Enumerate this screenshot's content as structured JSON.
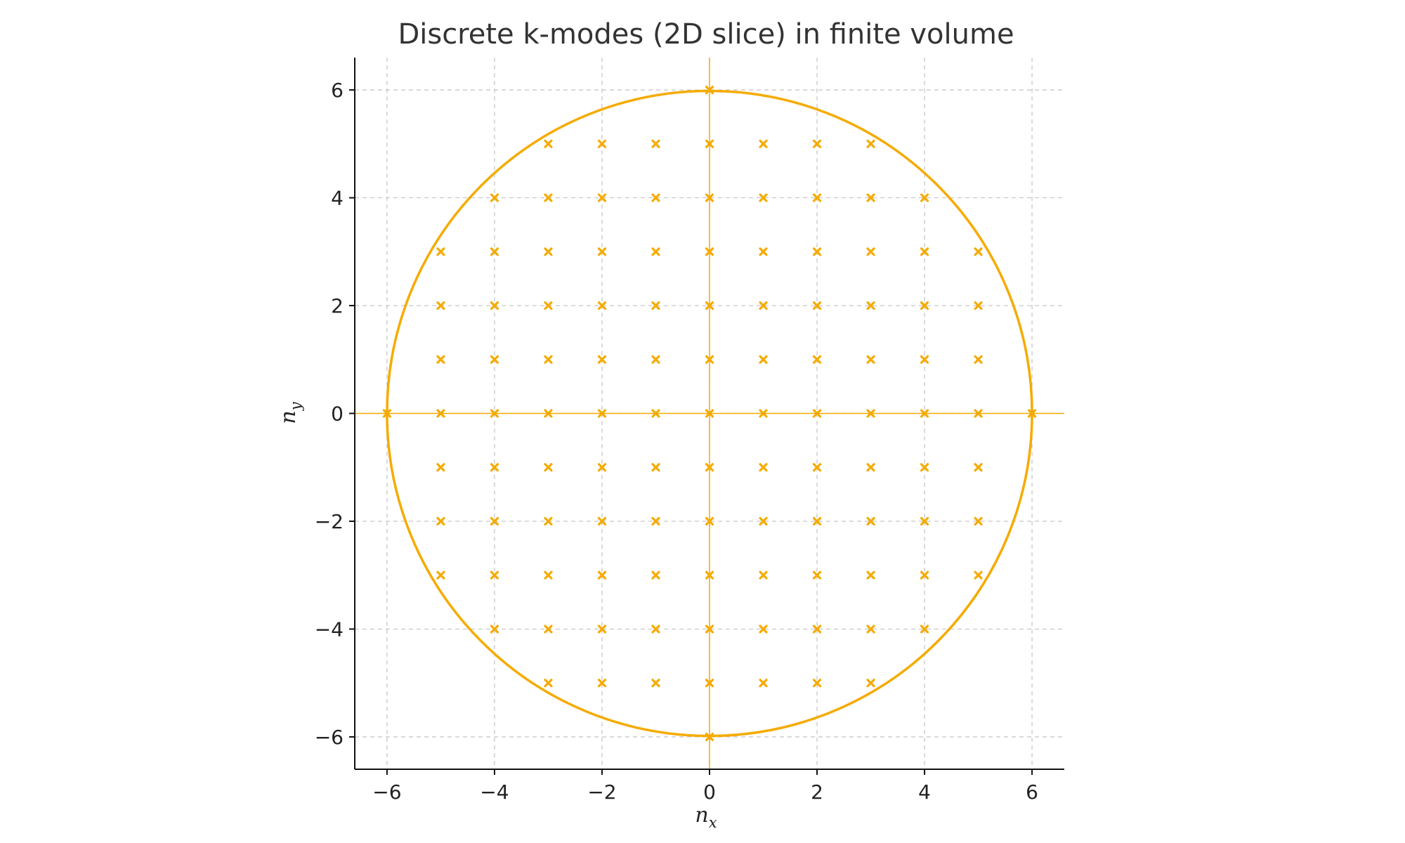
{
  "chart_data": {
    "type": "scatter",
    "title": "Discrete k-modes (2D slice) in finite volume",
    "xlabel": "n",
    "xlabel_sub": "x",
    "ylabel": "n",
    "ylabel_sub": "y",
    "xlim": [
      -6.6,
      6.6
    ],
    "ylim": [
      -6.6,
      6.6
    ],
    "xticks": [
      -6,
      -4,
      -2,
      0,
      2,
      4,
      6
    ],
    "yticks": [
      -6,
      -4,
      -2,
      0,
      2,
      4,
      6
    ],
    "xtick_labels": [
      "−6",
      "−4",
      "−2",
      "0",
      "2",
      "4",
      "6"
    ],
    "ytick_labels": [
      "−6",
      "−4",
      "−2",
      "0",
      "2",
      "4",
      "6"
    ],
    "grid": true,
    "color": "#f5ab00",
    "circle": {
      "center": [
        0,
        0
      ],
      "radius": 6
    },
    "crosshair": {
      "x": 0,
      "y": 0
    },
    "marker": "x",
    "points_rule": "all integer (n_x, n_y) with n_x^2 + n_y^2 <= 36",
    "points": [
      [
        0,
        6
      ],
      [
        -3,
        5
      ],
      [
        -2,
        5
      ],
      [
        -1,
        5
      ],
      [
        0,
        5
      ],
      [
        1,
        5
      ],
      [
        2,
        5
      ],
      [
        3,
        5
      ],
      [
        -4,
        4
      ],
      [
        -3,
        4
      ],
      [
        -2,
        4
      ],
      [
        -1,
        4
      ],
      [
        0,
        4
      ],
      [
        1,
        4
      ],
      [
        2,
        4
      ],
      [
        3,
        4
      ],
      [
        4,
        4
      ],
      [
        -5,
        3
      ],
      [
        -4,
        3
      ],
      [
        -3,
        3
      ],
      [
        -2,
        3
      ],
      [
        -1,
        3
      ],
      [
        0,
        3
      ],
      [
        1,
        3
      ],
      [
        2,
        3
      ],
      [
        3,
        3
      ],
      [
        4,
        3
      ],
      [
        5,
        3
      ],
      [
        -5,
        2
      ],
      [
        -4,
        2
      ],
      [
        -3,
        2
      ],
      [
        -2,
        2
      ],
      [
        -1,
        2
      ],
      [
        0,
        2
      ],
      [
        1,
        2
      ],
      [
        2,
        2
      ],
      [
        3,
        2
      ],
      [
        4,
        2
      ],
      [
        5,
        2
      ],
      [
        -5,
        1
      ],
      [
        -4,
        1
      ],
      [
        -3,
        1
      ],
      [
        -2,
        1
      ],
      [
        -1,
        1
      ],
      [
        0,
        1
      ],
      [
        1,
        1
      ],
      [
        2,
        1
      ],
      [
        3,
        1
      ],
      [
        4,
        1
      ],
      [
        5,
        1
      ],
      [
        -6,
        0
      ],
      [
        -5,
        0
      ],
      [
        -4,
        0
      ],
      [
        -3,
        0
      ],
      [
        -2,
        0
      ],
      [
        -1,
        0
      ],
      [
        0,
        0
      ],
      [
        1,
        0
      ],
      [
        2,
        0
      ],
      [
        3,
        0
      ],
      [
        4,
        0
      ],
      [
        5,
        0
      ],
      [
        6,
        0
      ],
      [
        -5,
        -1
      ],
      [
        -4,
        -1
      ],
      [
        -3,
        -1
      ],
      [
        -2,
        -1
      ],
      [
        -1,
        -1
      ],
      [
        0,
        -1
      ],
      [
        1,
        -1
      ],
      [
        2,
        -1
      ],
      [
        3,
        -1
      ],
      [
        4,
        -1
      ],
      [
        5,
        -1
      ],
      [
        -5,
        -2
      ],
      [
        -4,
        -2
      ],
      [
        -3,
        -2
      ],
      [
        -2,
        -2
      ],
      [
        -1,
        -2
      ],
      [
        0,
        -2
      ],
      [
        1,
        -2
      ],
      [
        2,
        -2
      ],
      [
        3,
        -2
      ],
      [
        4,
        -2
      ],
      [
        5,
        -2
      ],
      [
        -5,
        -3
      ],
      [
        -4,
        -3
      ],
      [
        -3,
        -3
      ],
      [
        -2,
        -3
      ],
      [
        -1,
        -3
      ],
      [
        0,
        -3
      ],
      [
        1,
        -3
      ],
      [
        2,
        -3
      ],
      [
        3,
        -3
      ],
      [
        4,
        -3
      ],
      [
        5,
        -3
      ],
      [
        -4,
        -4
      ],
      [
        -3,
        -4
      ],
      [
        -2,
        -4
      ],
      [
        -1,
        -4
      ],
      [
        0,
        -4
      ],
      [
        1,
        -4
      ],
      [
        2,
        -4
      ],
      [
        3,
        -4
      ],
      [
        4,
        -4
      ],
      [
        -3,
        -5
      ],
      [
        -2,
        -5
      ],
      [
        -1,
        -5
      ],
      [
        0,
        -5
      ],
      [
        1,
        -5
      ],
      [
        2,
        -5
      ],
      [
        3,
        -5
      ],
      [
        0,
        -6
      ]
    ]
  }
}
